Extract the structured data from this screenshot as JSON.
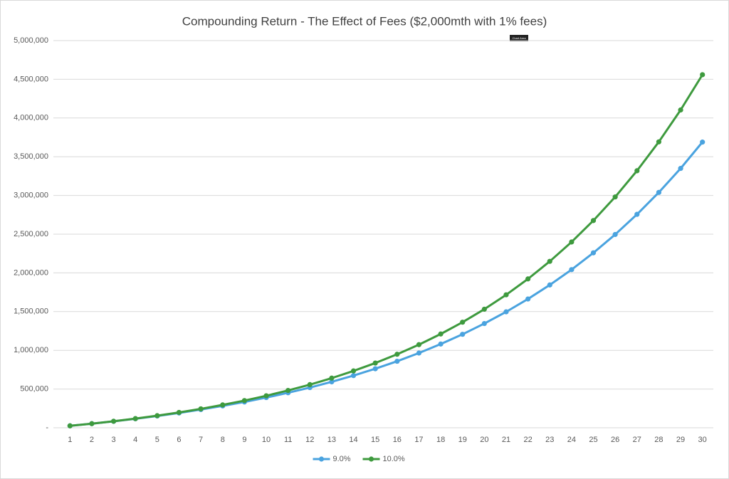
{
  "chart_data": {
    "type": "line",
    "title": "Compounding Return - The Effect of Fees ($2,000mth with 1% fees)",
    "tooltip": "Chart Area",
    "categories": [
      "1",
      "2",
      "3",
      "4",
      "5",
      "6",
      "7",
      "8",
      "9",
      "10",
      "11",
      "12",
      "13",
      "14",
      "15",
      "16",
      "17",
      "18",
      "19",
      "20",
      "21",
      "22",
      "23",
      "24",
      "25",
      "26",
      "27",
      "28",
      "29",
      "30"
    ],
    "series": [
      {
        "name": "9.0%",
        "color": "#4aa3df",
        "values": [
          25000,
          53000,
          83000,
          116000,
          152000,
          191000,
          235000,
          282000,
          333000,
          390000,
          452000,
          519000,
          593000,
          674000,
          762000,
          859000,
          965000,
          1081000,
          1207000,
          1346000,
          1497000,
          1663000,
          1844000,
          2042000,
          2259000,
          2496000,
          2756000,
          3039000,
          3349000,
          3689000
        ]
      },
      {
        "name": "10.0%",
        "color": "#3e9a3e",
        "values": [
          25000,
          53000,
          84000,
          118000,
          156000,
          198000,
          244000,
          295000,
          351000,
          413000,
          482000,
          557000,
          641000,
          734000,
          836000,
          949000,
          1073000,
          1211000,
          1363000,
          1531000,
          1717000,
          1922000,
          2149000,
          2399000,
          2676000,
          2981000,
          3319000,
          3692000,
          4104000,
          4559000
        ]
      }
    ],
    "ylim": [
      0,
      5000000
    ],
    "yticks": [
      {
        "value": 0,
        "label": "-"
      },
      {
        "value": 500000,
        "label": "500,000"
      },
      {
        "value": 1000000,
        "label": "1,000,000"
      },
      {
        "value": 1500000,
        "label": "1,500,000"
      },
      {
        "value": 2000000,
        "label": "2,000,000"
      },
      {
        "value": 2500000,
        "label": "2,500,000"
      },
      {
        "value": 3000000,
        "label": "3,000,000"
      },
      {
        "value": 3500000,
        "label": "3,500,000"
      },
      {
        "value": 4000000,
        "label": "4,000,000"
      },
      {
        "value": 4500000,
        "label": "4,500,000"
      },
      {
        "value": 5000000,
        "label": "5,000,000"
      }
    ],
    "grid": true,
    "legend": "bottom"
  }
}
